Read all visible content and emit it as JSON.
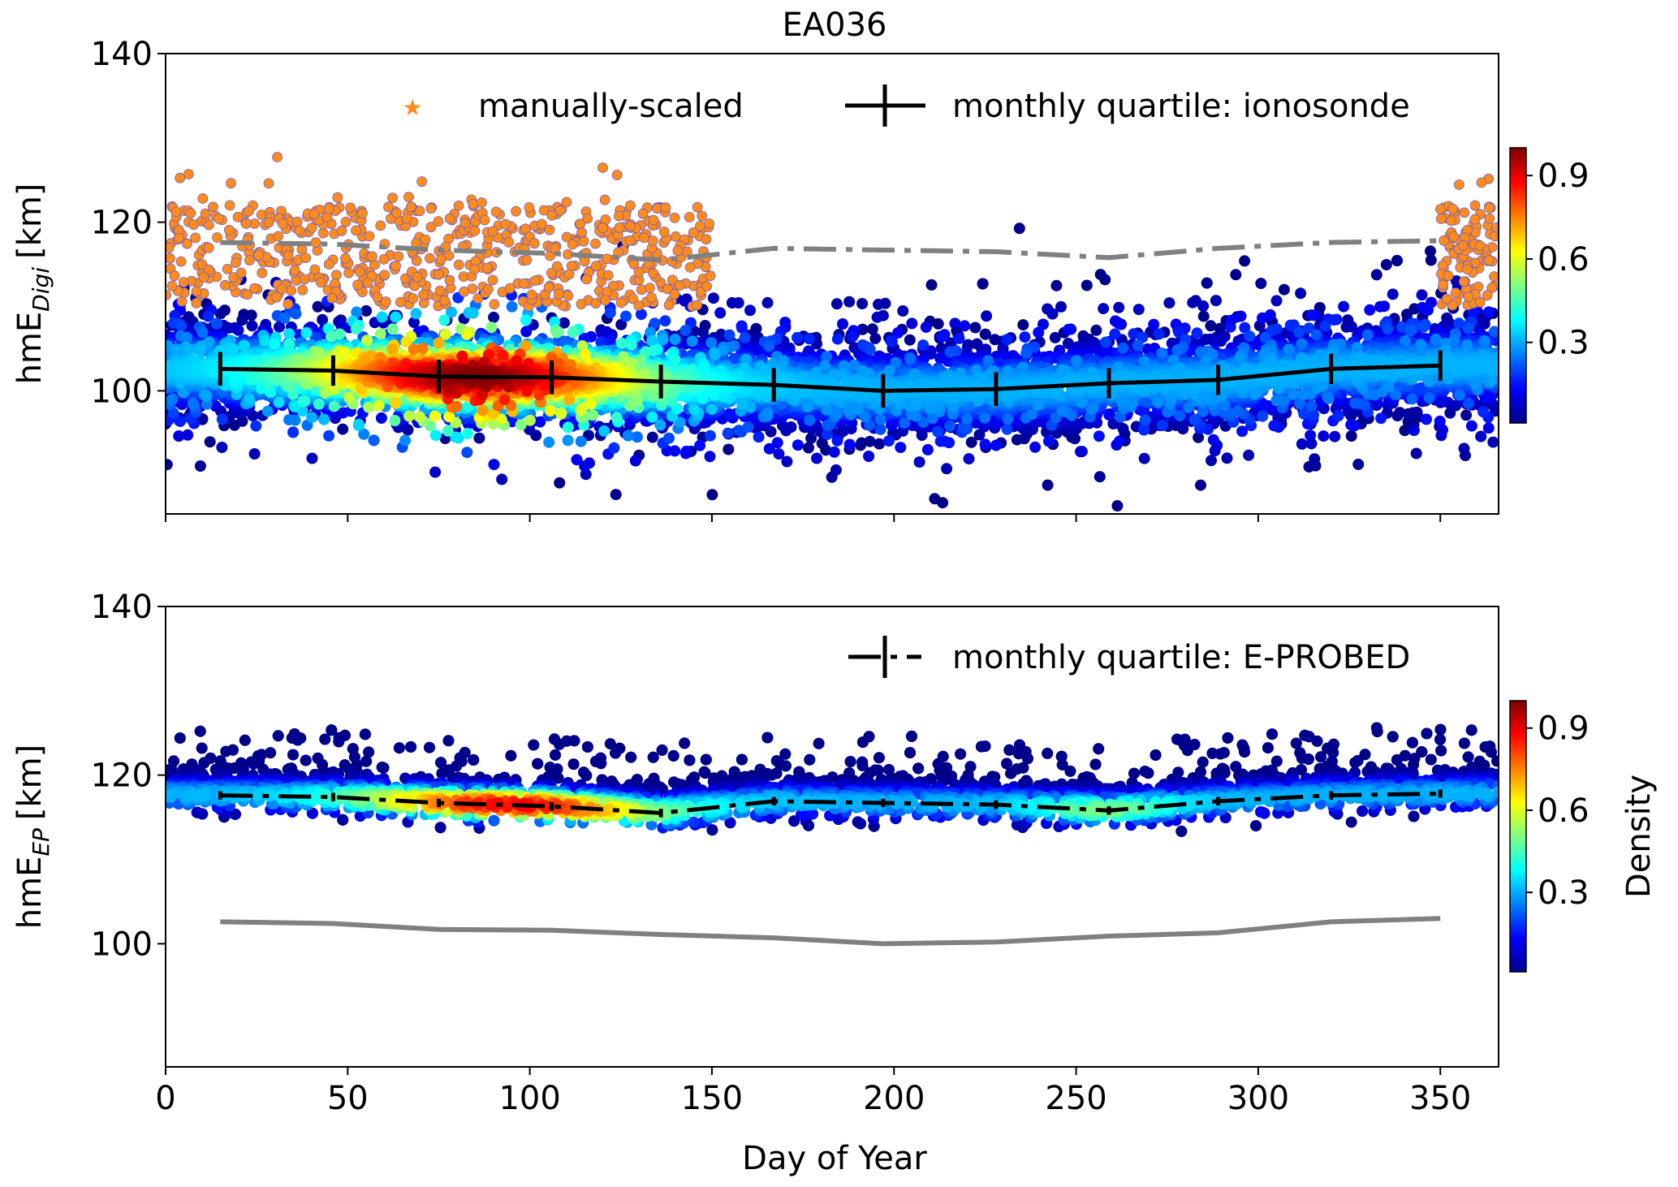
{
  "chart_data": [
    {
      "type": "scatter",
      "title": "EA036",
      "ylabel_main": "hmE",
      "ylabel_sub": "Digi",
      "ylabel_unit": "[km]",
      "xlim": [
        0,
        366
      ],
      "ylim": [
        85.4,
        140
      ],
      "yticks": [
        100,
        120,
        140
      ],
      "xticks": [
        0,
        50,
        100,
        150,
        200,
        250,
        300,
        350
      ],
      "grid": false,
      "legend_placement": "top-right",
      "legend": [
        "manually-scaled",
        "monthly quartile: ionosonde"
      ],
      "colors": {
        "manual": "#ff8c1a",
        "quartile": "#000000",
        "reference": "#808080"
      },
      "series": [
        {
          "name": "monthly quartile: ionosonde",
          "style": "solid-errorbar",
          "x": [
            15,
            46,
            75,
            106,
            136,
            167,
            197,
            228,
            259,
            289,
            320,
            350
          ],
          "y": [
            102.6,
            102.4,
            101.7,
            101.6,
            101.1,
            100.7,
            100.0,
            100.2,
            100.9,
            101.3,
            102.6,
            103.0
          ],
          "err": [
            2.0,
            1.8,
            2.0,
            2.0,
            2.0,
            2.0,
            2.0,
            2.0,
            1.8,
            1.8,
            1.8,
            1.8
          ]
        },
        {
          "style": "dash-dot-gray",
          "x": [
            15,
            46,
            75,
            106,
            136,
            167,
            197,
            228,
            259,
            289,
            320,
            350
          ],
          "y": [
            117.6,
            117.4,
            116.7,
            116.3,
            115.5,
            116.9,
            116.7,
            116.5,
            115.8,
            116.9,
            117.6,
            117.8
          ]
        }
      ],
      "colorbar": {
        "ticks": [
          0.3,
          0.6,
          0.9
        ],
        "range": [
          0.01,
          1.0
        ],
        "colormap": "jet"
      }
    },
    {
      "type": "scatter",
      "ylabel_main": "hmE",
      "ylabel_sub": "EP",
      "ylabel_unit": "[km]",
      "xlabel": "Day of Year",
      "xlim": [
        0,
        366
      ],
      "ylim": [
        85.4,
        140
      ],
      "yticks": [
        100,
        120,
        140
      ],
      "xticks": [
        0,
        50,
        100,
        150,
        200,
        250,
        300,
        350
      ],
      "grid": false,
      "legend_placement": "top-right",
      "legend": [
        "monthly quartile: E-PROBED"
      ],
      "series": [
        {
          "name": "monthly quartile: E-PROBED",
          "style": "dash-dot-errorbar",
          "x": [
            15,
            46,
            75,
            106,
            136,
            167,
            197,
            228,
            259,
            289,
            320,
            350
          ],
          "y": [
            117.6,
            117.4,
            116.7,
            116.3,
            115.5,
            116.9,
            116.7,
            116.5,
            115.8,
            116.9,
            117.6,
            117.8
          ],
          "err": [
            0.5,
            0.5,
            0.5,
            0.5,
            0.5,
            0.5,
            0.5,
            0.5,
            0.5,
            0.5,
            0.5,
            0.5
          ]
        },
        {
          "style": "solid-gray",
          "x": [
            15,
            46,
            75,
            106,
            136,
            167,
            197,
            228,
            259,
            289,
            320,
            350
          ],
          "y": [
            102.6,
            102.4,
            101.7,
            101.6,
            101.1,
            100.7,
            100.0,
            100.2,
            100.9,
            101.3,
            102.6,
            103.0
          ]
        }
      ],
      "colorbar": {
        "label": "Density",
        "ticks": [
          0.3,
          0.6,
          0.9
        ],
        "range": [
          0.01,
          1.0
        ],
        "colormap": "jet"
      }
    }
  ]
}
